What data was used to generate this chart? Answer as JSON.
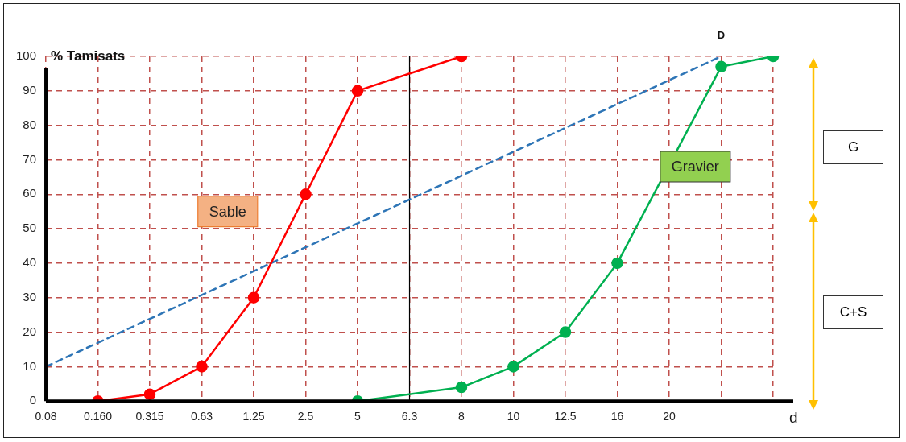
{
  "chart_data": {
    "type": "line",
    "ylabel": "% Tamisats",
    "xlabel": "d",
    "categories": [
      "0.08",
      "0.160",
      "0.315",
      "0.63",
      "1.25",
      "2.5",
      "5",
      "6.3",
      "8",
      "10",
      "12.5",
      "16",
      "20",
      null,
      null
    ],
    "series": [
      {
        "name": "Sable",
        "color": "#ff0000",
        "values": [
          null,
          0,
          2,
          10,
          30,
          60,
          90,
          null,
          100,
          null,
          null,
          null,
          null,
          null,
          null
        ]
      },
      {
        "name": "Gravier",
        "color": "#00b050",
        "values": [
          null,
          null,
          null,
          null,
          null,
          null,
          0,
          null,
          4,
          10,
          20,
          40,
          null,
          97,
          100
        ]
      },
      {
        "color": "#2e75b6",
        "line_style": "dashed",
        "marker": "none",
        "values": [
          10,
          null,
          null,
          null,
          null,
          null,
          null,
          null,
          null,
          null,
          null,
          null,
          null,
          100,
          null
        ]
      }
    ],
    "ylim": [
      0,
      100
    ],
    "yticks": [
      0,
      10,
      20,
      30,
      40,
      50,
      60,
      70,
      80,
      90,
      100
    ],
    "grid": true,
    "marker": "circle",
    "line_style": "solid",
    "ref_lines": [
      {
        "axis": "x",
        "value": "6.3",
        "color": "#000000"
      }
    ],
    "annotations": [
      "D",
      "G",
      "C+S"
    ]
  }
}
